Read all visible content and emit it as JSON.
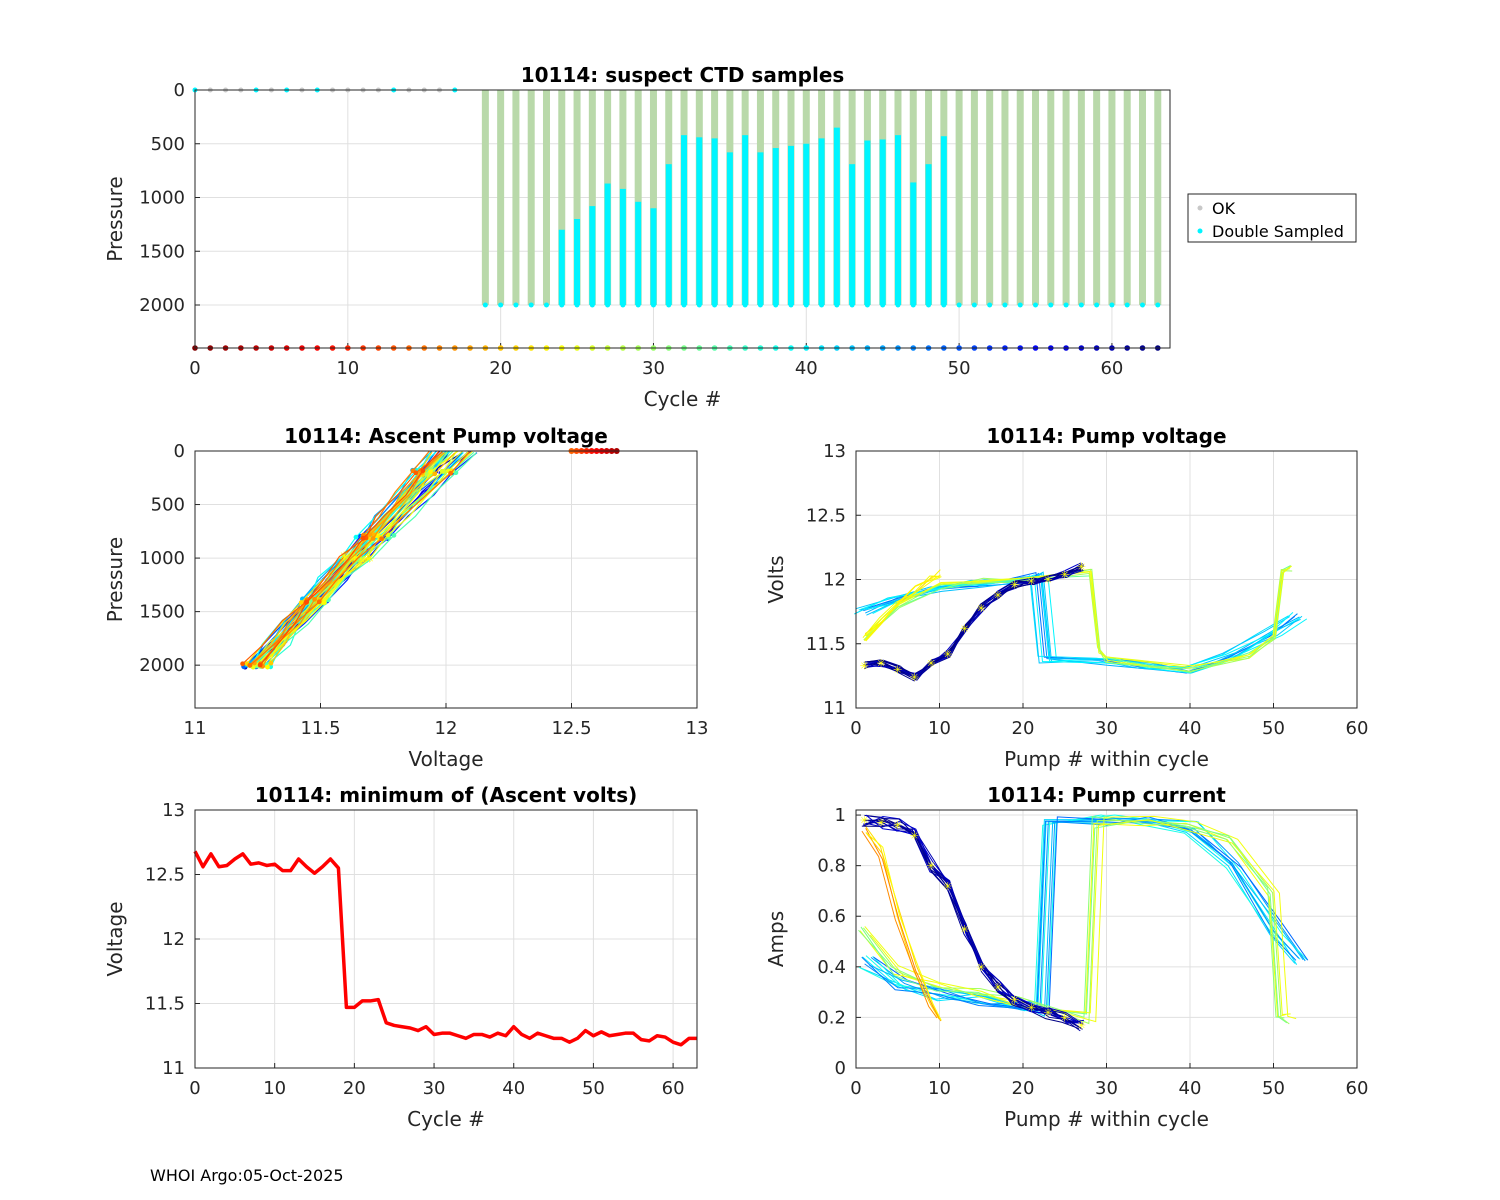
{
  "footer": "WHOI Argo:05-Oct-2025",
  "colors": {
    "ok": "#b9d9aa",
    "ok_marker": "#c8c8c8",
    "double": "#00f5ff",
    "min_line": "#ff0000",
    "grid": "#e0e0e0",
    "axis": "#262626",
    "marker_star": "#ffff00"
  },
  "chart_data": [
    {
      "id": "ctd",
      "type": "scatter",
      "title": "10114: suspect CTD samples",
      "xlabel": "Cycle #",
      "ylabel": "Pressure",
      "xlim": [
        0,
        63.8
      ],
      "ylim": [
        0,
        2400
      ],
      "y_reversed": true,
      "xticks": [
        0,
        10,
        20,
        30,
        40,
        50,
        60
      ],
      "yticks": [
        0,
        500,
        1000,
        1500,
        2000
      ],
      "legend": {
        "position": "outside-right",
        "entries": [
          {
            "name": "OK",
            "color": "#c8c8c8"
          },
          {
            "name": "Double Sampled",
            "color": "#00f5ff"
          }
        ]
      },
      "shallow_cycles": [
        0,
        1,
        2,
        3,
        4,
        5,
        6,
        7,
        8,
        9,
        10,
        11,
        12,
        13,
        14,
        15,
        16,
        17
      ],
      "double_sampled_shallow": [
        0,
        4,
        6,
        8,
        13,
        17
      ],
      "profile_cycles_start": 19,
      "profile_cycles_end": 63,
      "profile_max_pressure": 2000,
      "double_sampled_tops": [
        [
          24,
          1300
        ],
        [
          25,
          1200
        ],
        [
          26,
          1080
        ],
        [
          27,
          870
        ],
        [
          28,
          920
        ],
        [
          29,
          1040
        ],
        [
          30,
          1100
        ],
        [
          31,
          690
        ],
        [
          32,
          420
        ],
        [
          33,
          440
        ],
        [
          34,
          450
        ],
        [
          35,
          580
        ],
        [
          36,
          420
        ],
        [
          37,
          580
        ],
        [
          38,
          540
        ],
        [
          39,
          520
        ],
        [
          40,
          500
        ],
        [
          41,
          450
        ],
        [
          42,
          350
        ],
        [
          43,
          690
        ],
        [
          44,
          470
        ],
        [
          45,
          460
        ],
        [
          46,
          420
        ],
        [
          47,
          860
        ],
        [
          48,
          690
        ],
        [
          49,
          430
        ]
      ],
      "bottom_row_pressure": 2400,
      "cycle_count": 64
    },
    {
      "id": "ascent",
      "type": "scatter",
      "title": "10114: Ascent Pump voltage",
      "xlabel": "Voltage",
      "ylabel": "Pressure",
      "xlim": [
        11,
        13
      ],
      "ylim": [
        0,
        2400
      ],
      "y_reversed": true,
      "xticks": [
        11,
        11.5,
        12,
        12.5,
        13
      ],
      "yticks": [
        0,
        500,
        1000,
        1500,
        2000
      ],
      "surface_points_voltage": [
        12.5,
        12.52,
        12.54,
        12.56,
        12.58,
        12.6,
        12.62,
        12.64,
        12.66,
        12.68
      ],
      "profile_bottom_voltage": [
        11.2,
        11.3
      ],
      "profile_top_voltage": [
        11.95,
        12.12
      ]
    },
    {
      "id": "pumpv",
      "type": "line",
      "title": "10114: Pump voltage",
      "xlabel": "Pump # within cycle",
      "ylabel": "Volts",
      "xlim": [
        0,
        60
      ],
      "ylim": [
        11,
        13
      ],
      "xticks": [
        0,
        10,
        20,
        30,
        40,
        50,
        60
      ],
      "yticks": [
        11,
        11.5,
        12,
        12.5,
        13
      ],
      "dark_series": [
        [
          1,
          11.33
        ],
        [
          3,
          11.35
        ],
        [
          5,
          11.3
        ],
        [
          7,
          11.24
        ],
        [
          9,
          11.35
        ],
        [
          11,
          11.42
        ],
        [
          13,
          11.62
        ],
        [
          15,
          11.78
        ],
        [
          17,
          11.88
        ],
        [
          19,
          11.96
        ],
        [
          21,
          11.99
        ],
        [
          23,
          12.0
        ],
        [
          25,
          12.04
        ],
        [
          27,
          12.1
        ]
      ],
      "yellow_series": [
        [
          1,
          11.55
        ],
        [
          3,
          11.68
        ],
        [
          5,
          11.82
        ],
        [
          7,
          11.92
        ],
        [
          9,
          12.0
        ],
        [
          10,
          12.05
        ]
      ],
      "blue_series": [
        [
          1,
          11.75
        ],
        [
          5,
          11.85
        ],
        [
          10,
          11.93
        ],
        [
          15,
          11.97
        ],
        [
          20,
          12.0
        ],
        [
          22,
          12.03
        ],
        [
          23,
          11.38
        ],
        [
          30,
          11.36
        ],
        [
          35,
          11.33
        ],
        [
          40,
          11.3
        ],
        [
          45,
          11.4
        ],
        [
          50,
          11.58
        ],
        [
          53,
          11.72
        ]
      ],
      "green_series": [
        [
          1,
          11.55
        ],
        [
          5,
          11.8
        ],
        [
          10,
          11.95
        ],
        [
          15,
          12.0
        ],
        [
          20,
          12.01
        ],
        [
          28,
          12.05
        ],
        [
          29,
          11.45
        ],
        [
          30,
          11.38
        ],
        [
          40,
          11.3
        ],
        [
          47,
          11.4
        ],
        [
          50,
          11.55
        ],
        [
          51,
          12.08
        ],
        [
          52,
          12.08
        ]
      ]
    },
    {
      "id": "minv",
      "type": "line",
      "title": "10114: minimum of (Ascent volts)",
      "xlabel": "Cycle #",
      "ylabel": "Voltage",
      "xlim": [
        0,
        63
      ],
      "ylim": [
        11,
        13
      ],
      "xticks": [
        0,
        10,
        20,
        30,
        40,
        50,
        60
      ],
      "yticks": [
        11,
        11.5,
        12,
        12.5,
        13
      ],
      "x": [
        0,
        1,
        2,
        3,
        4,
        5,
        6,
        7,
        8,
        9,
        10,
        11,
        12,
        13,
        14,
        15,
        16,
        17,
        18,
        19,
        20,
        21,
        22,
        23,
        24,
        25,
        26,
        27,
        28,
        29,
        30,
        31,
        32,
        33,
        34,
        35,
        36,
        37,
        38,
        39,
        40,
        41,
        42,
        43,
        44,
        45,
        46,
        47,
        48,
        49,
        50,
        51,
        52,
        53,
        54,
        55,
        56,
        57,
        58,
        59,
        60,
        61,
        62,
        63
      ],
      "values": [
        12.68,
        12.56,
        12.66,
        12.56,
        12.57,
        12.62,
        12.66,
        12.58,
        12.59,
        12.57,
        12.58,
        12.53,
        12.53,
        12.62,
        12.56,
        12.51,
        12.56,
        12.62,
        12.55,
        11.47,
        11.47,
        11.52,
        11.52,
        11.53,
        11.35,
        11.33,
        11.32,
        11.31,
        11.29,
        11.32,
        11.26,
        11.27,
        11.27,
        11.25,
        11.23,
        11.26,
        11.26,
        11.24,
        11.27,
        11.25,
        11.32,
        11.26,
        11.23,
        11.27,
        11.25,
        11.23,
        11.23,
        11.2,
        11.23,
        11.29,
        11.25,
        11.28,
        11.25,
        11.26,
        11.27,
        11.27,
        11.22,
        11.21,
        11.25,
        11.24,
        11.2,
        11.18,
        11.23,
        11.23
      ]
    },
    {
      "id": "pumpc",
      "type": "line",
      "title": "10114: Pump current",
      "xlabel": "Pump # within cycle",
      "ylabel": "Amps",
      "xlim": [
        0,
        60
      ],
      "ylim": [
        0,
        1.02
      ],
      "xticks": [
        0,
        10,
        20,
        30,
        40,
        50,
        60
      ],
      "yticks": [
        0,
        0.2,
        0.4,
        0.6,
        0.8,
        1
      ],
      "dark_series": [
        [
          1,
          0.98
        ],
        [
          3,
          0.97
        ],
        [
          5,
          0.96
        ],
        [
          7,
          0.92
        ],
        [
          9,
          0.8
        ],
        [
          11,
          0.72
        ],
        [
          13,
          0.55
        ],
        [
          15,
          0.4
        ],
        [
          17,
          0.32
        ],
        [
          19,
          0.27
        ],
        [
          21,
          0.24
        ],
        [
          23,
          0.22
        ],
        [
          25,
          0.2
        ],
        [
          27,
          0.17
        ]
      ],
      "yellow_series": [
        [
          1,
          0.95
        ],
        [
          3,
          0.85
        ],
        [
          5,
          0.6
        ],
        [
          7,
          0.4
        ],
        [
          9,
          0.25
        ],
        [
          10,
          0.2
        ]
      ],
      "low_series": [
        [
          1,
          0.42
        ],
        [
          5,
          0.33
        ],
        [
          10,
          0.29
        ],
        [
          15,
          0.27
        ],
        [
          20,
          0.25
        ],
        [
          22,
          0.23
        ],
        [
          23,
          0.98
        ],
        [
          30,
          0.98
        ],
        [
          35,
          0.97
        ],
        [
          40,
          0.95
        ],
        [
          45,
          0.8
        ],
        [
          50,
          0.55
        ],
        [
          53,
          0.43
        ]
      ],
      "green_series": [
        [
          1,
          0.55
        ],
        [
          5,
          0.38
        ],
        [
          10,
          0.32
        ],
        [
          15,
          0.3
        ],
        [
          20,
          0.26
        ],
        [
          28,
          0.2
        ],
        [
          29,
          0.97
        ],
        [
          35,
          0.97
        ],
        [
          40,
          0.96
        ],
        [
          45,
          0.9
        ],
        [
          50,
          0.7
        ],
        [
          51,
          0.2
        ],
        [
          52,
          0.19
        ]
      ]
    }
  ]
}
